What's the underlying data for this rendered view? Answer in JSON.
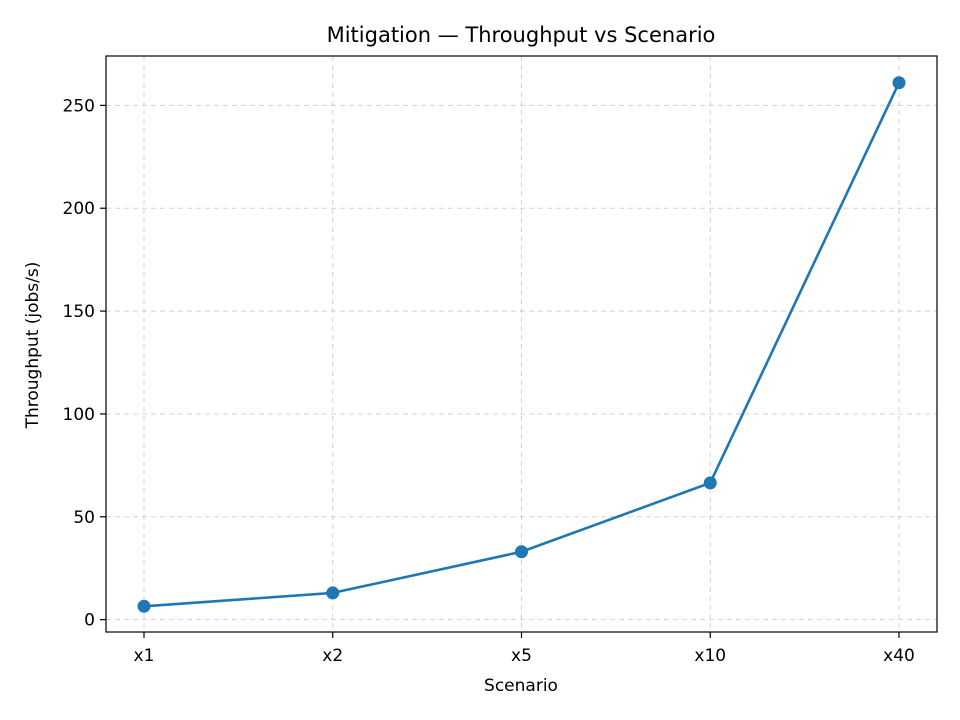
{
  "chart_data": {
    "type": "line",
    "title": "Mitigation — Throughput vs Scenario",
    "xlabel": "Scenario",
    "ylabel": "Throughput (jobs/s)",
    "categories": [
      "x1",
      "x2",
      "x5",
      "x10",
      "x40"
    ],
    "series": [
      {
        "values": [
          6.5,
          13,
          33,
          66.5,
          261
        ],
        "color": "#1f77b4",
        "marker": "circle"
      }
    ],
    "ylim": [
      -6,
      274
    ],
    "yticks": [
      0,
      50,
      100,
      150,
      200,
      250
    ],
    "grid": true,
    "legend": false
  }
}
